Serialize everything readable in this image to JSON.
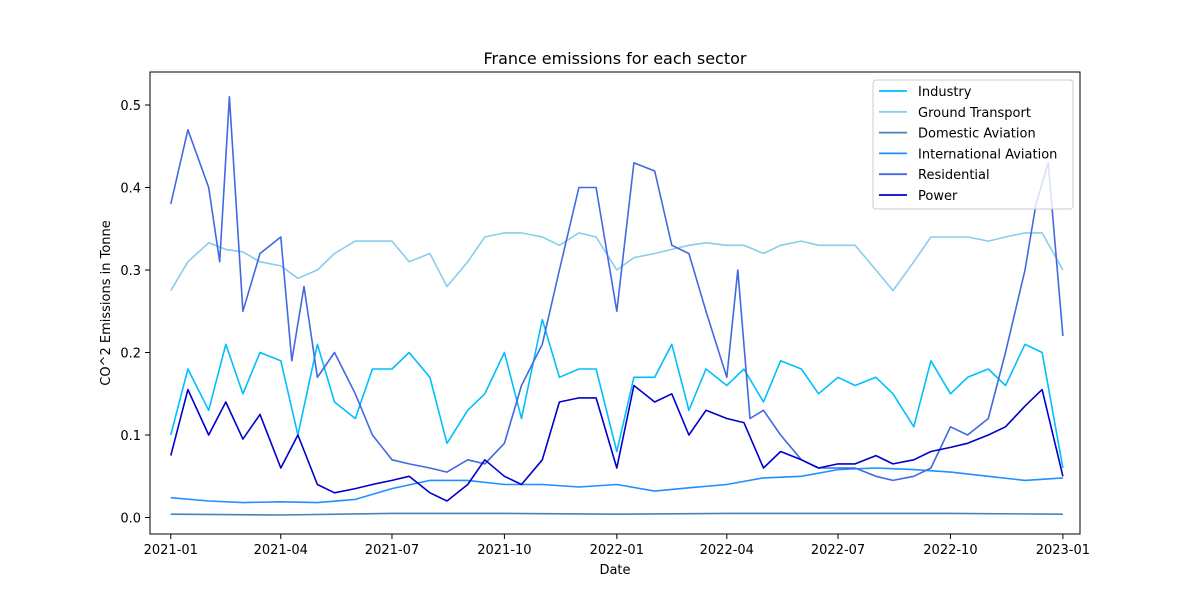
{
  "chart_data": {
    "type": "line",
    "title": "France emissions for each sector",
    "xlabel": "Date",
    "ylabel": "CO^2 Emissions in Tonne",
    "xlim": [
      "2020-12-15",
      "2023-01-15"
    ],
    "ylim": [
      -0.02,
      0.54
    ],
    "x_ticks": [
      "2021-01",
      "2021-04",
      "2021-07",
      "2021-10",
      "2022-01",
      "2022-04",
      "2022-07",
      "2022-10",
      "2023-01"
    ],
    "y_ticks": [
      "0.0",
      "0.1",
      "0.2",
      "0.3",
      "0.4",
      "0.5"
    ],
    "grid": false,
    "legend_position": "top-right",
    "series": [
      {
        "name": "Industry",
        "color": "#00bfff",
        "x": [
          "2021-01-01",
          "2021-01-15",
          "2021-02-01",
          "2021-02-15",
          "2021-03-01",
          "2021-03-15",
          "2021-04-01",
          "2021-04-15",
          "2021-05-01",
          "2021-05-15",
          "2021-06-01",
          "2021-06-15",
          "2021-07-01",
          "2021-07-15",
          "2021-08-01",
          "2021-08-15",
          "2021-09-01",
          "2021-09-15",
          "2021-10-01",
          "2021-10-15",
          "2021-11-01",
          "2021-11-15",
          "2021-12-01",
          "2021-12-15",
          "2022-01-01",
          "2022-01-15",
          "2022-02-01",
          "2022-02-15",
          "2022-03-01",
          "2022-03-15",
          "2022-04-01",
          "2022-04-15",
          "2022-05-01",
          "2022-05-15",
          "2022-06-01",
          "2022-06-15",
          "2022-07-01",
          "2022-07-15",
          "2022-08-01",
          "2022-08-15",
          "2022-09-01",
          "2022-09-15",
          "2022-10-01",
          "2022-10-15",
          "2022-11-01",
          "2022-11-15",
          "2022-12-01",
          "2022-12-15",
          "2023-01-01"
        ],
        "y": [
          0.1,
          0.18,
          0.13,
          0.21,
          0.15,
          0.2,
          0.19,
          0.1,
          0.21,
          0.14,
          0.12,
          0.18,
          0.18,
          0.2,
          0.17,
          0.09,
          0.13,
          0.15,
          0.2,
          0.12,
          0.24,
          0.17,
          0.18,
          0.18,
          0.08,
          0.17,
          0.17,
          0.21,
          0.13,
          0.18,
          0.16,
          0.18,
          0.14,
          0.19,
          0.18,
          0.15,
          0.17,
          0.16,
          0.17,
          0.15,
          0.11,
          0.19,
          0.15,
          0.17,
          0.18,
          0.16,
          0.21,
          0.2,
          0.06
        ]
      },
      {
        "name": "Ground Transport",
        "color": "#87ceeb",
        "x": [
          "2021-01-01",
          "2021-01-15",
          "2021-02-01",
          "2021-02-15",
          "2021-03-01",
          "2021-03-15",
          "2021-04-01",
          "2021-04-15",
          "2021-05-01",
          "2021-05-15",
          "2021-06-01",
          "2021-06-15",
          "2021-07-01",
          "2021-07-15",
          "2021-08-01",
          "2021-08-15",
          "2021-09-01",
          "2021-09-15",
          "2021-10-01",
          "2021-10-15",
          "2021-11-01",
          "2021-11-15",
          "2021-12-01",
          "2021-12-15",
          "2022-01-01",
          "2022-01-15",
          "2022-02-01",
          "2022-02-15",
          "2022-03-01",
          "2022-03-15",
          "2022-04-01",
          "2022-04-15",
          "2022-05-01",
          "2022-05-15",
          "2022-06-01",
          "2022-06-15",
          "2022-07-01",
          "2022-07-15",
          "2022-08-01",
          "2022-08-15",
          "2022-09-01",
          "2022-09-15",
          "2022-10-01",
          "2022-10-15",
          "2022-11-01",
          "2022-11-15",
          "2022-12-01",
          "2022-12-15",
          "2023-01-01"
        ],
        "y": [
          0.275,
          0.31,
          0.333,
          0.325,
          0.322,
          0.31,
          0.305,
          0.29,
          0.3,
          0.32,
          0.335,
          0.335,
          0.335,
          0.31,
          0.32,
          0.28,
          0.31,
          0.34,
          0.345,
          0.345,
          0.34,
          0.33,
          0.345,
          0.34,
          0.3,
          0.315,
          0.32,
          0.325,
          0.33,
          0.333,
          0.33,
          0.33,
          0.32,
          0.33,
          0.335,
          0.33,
          0.33,
          0.33,
          0.3,
          0.275,
          0.31,
          0.34,
          0.34,
          0.34,
          0.335,
          0.34,
          0.345,
          0.345,
          0.3
        ]
      },
      {
        "name": "Domestic Aviation",
        "color": "#4682b4",
        "x": [
          "2021-01-01",
          "2021-04-01",
          "2021-07-01",
          "2021-10-01",
          "2022-01-01",
          "2022-04-01",
          "2022-07-01",
          "2022-10-01",
          "2023-01-01"
        ],
        "y": [
          0.004,
          0.003,
          0.005,
          0.005,
          0.004,
          0.005,
          0.005,
          0.005,
          0.004
        ]
      },
      {
        "name": "International Aviation",
        "color": "#1e90ff",
        "x": [
          "2021-01-01",
          "2021-02-01",
          "2021-03-01",
          "2021-04-01",
          "2021-05-01",
          "2021-06-01",
          "2021-07-01",
          "2021-08-01",
          "2021-09-01",
          "2021-10-01",
          "2021-11-01",
          "2021-12-01",
          "2022-01-01",
          "2022-02-01",
          "2022-03-01",
          "2022-04-01",
          "2022-05-01",
          "2022-06-01",
          "2022-07-01",
          "2022-08-01",
          "2022-09-01",
          "2022-10-01",
          "2022-11-01",
          "2022-12-01",
          "2023-01-01"
        ],
        "y": [
          0.024,
          0.02,
          0.018,
          0.019,
          0.018,
          0.022,
          0.035,
          0.045,
          0.045,
          0.04,
          0.04,
          0.037,
          0.04,
          0.032,
          0.036,
          0.04,
          0.048,
          0.05,
          0.058,
          0.06,
          0.058,
          0.055,
          0.05,
          0.045,
          0.048
        ]
      },
      {
        "name": "Residential",
        "color": "#4169e1",
        "x": [
          "2021-01-01",
          "2021-01-15",
          "2021-02-01",
          "2021-02-10",
          "2021-02-18",
          "2021-03-01",
          "2021-03-15",
          "2021-04-01",
          "2021-04-10",
          "2021-04-20",
          "2021-05-01",
          "2021-05-15",
          "2021-06-01",
          "2021-06-15",
          "2021-07-01",
          "2021-07-15",
          "2021-08-01",
          "2021-08-15",
          "2021-09-01",
          "2021-09-15",
          "2021-10-01",
          "2021-10-15",
          "2021-11-01",
          "2021-11-15",
          "2021-12-01",
          "2021-12-15",
          "2022-01-01",
          "2022-01-15",
          "2022-02-01",
          "2022-02-15",
          "2022-03-01",
          "2022-03-15",
          "2022-04-01",
          "2022-04-10",
          "2022-04-20",
          "2022-05-01",
          "2022-05-15",
          "2022-06-01",
          "2022-06-15",
          "2022-07-01",
          "2022-07-15",
          "2022-08-01",
          "2022-08-15",
          "2022-09-01",
          "2022-09-15",
          "2022-10-01",
          "2022-10-15",
          "2022-11-01",
          "2022-11-15",
          "2022-12-01",
          "2022-12-10",
          "2022-12-20",
          "2023-01-01"
        ],
        "y": [
          0.38,
          0.47,
          0.4,
          0.31,
          0.51,
          0.25,
          0.32,
          0.34,
          0.19,
          0.28,
          0.17,
          0.2,
          0.15,
          0.1,
          0.07,
          0.065,
          0.06,
          0.055,
          0.07,
          0.065,
          0.09,
          0.16,
          0.21,
          0.3,
          0.4,
          0.4,
          0.25,
          0.43,
          0.42,
          0.33,
          0.32,
          0.25,
          0.17,
          0.3,
          0.12,
          0.13,
          0.1,
          0.07,
          0.06,
          0.06,
          0.06,
          0.05,
          0.045,
          0.05,
          0.06,
          0.11,
          0.1,
          0.12,
          0.2,
          0.3,
          0.38,
          0.43,
          0.22
        ]
      },
      {
        "name": "Power",
        "color": "#0000cd",
        "x": [
          "2021-01-01",
          "2021-01-15",
          "2021-02-01",
          "2021-02-15",
          "2021-03-01",
          "2021-03-15",
          "2021-04-01",
          "2021-04-15",
          "2021-05-01",
          "2021-05-15",
          "2021-06-01",
          "2021-06-15",
          "2021-07-01",
          "2021-07-15",
          "2021-08-01",
          "2021-08-15",
          "2021-09-01",
          "2021-09-15",
          "2021-10-01",
          "2021-10-15",
          "2021-11-01",
          "2021-11-15",
          "2021-12-01",
          "2021-12-15",
          "2022-01-01",
          "2022-01-15",
          "2022-02-01",
          "2022-02-15",
          "2022-03-01",
          "2022-03-15",
          "2022-04-01",
          "2022-04-15",
          "2022-05-01",
          "2022-05-15",
          "2022-06-01",
          "2022-06-15",
          "2022-07-01",
          "2022-07-15",
          "2022-08-01",
          "2022-08-15",
          "2022-09-01",
          "2022-09-15",
          "2022-10-01",
          "2022-10-15",
          "2022-11-01",
          "2022-11-15",
          "2022-12-01",
          "2022-12-15",
          "2023-01-01"
        ],
        "y": [
          0.075,
          0.155,
          0.1,
          0.14,
          0.095,
          0.125,
          0.06,
          0.1,
          0.04,
          0.03,
          0.035,
          0.04,
          0.045,
          0.05,
          0.03,
          0.02,
          0.04,
          0.07,
          0.05,
          0.04,
          0.07,
          0.14,
          0.145,
          0.145,
          0.06,
          0.16,
          0.14,
          0.15,
          0.1,
          0.13,
          0.12,
          0.115,
          0.06,
          0.08,
          0.07,
          0.06,
          0.065,
          0.065,
          0.075,
          0.065,
          0.07,
          0.08,
          0.085,
          0.09,
          0.1,
          0.11,
          0.135,
          0.155,
          0.05
        ]
      }
    ]
  }
}
